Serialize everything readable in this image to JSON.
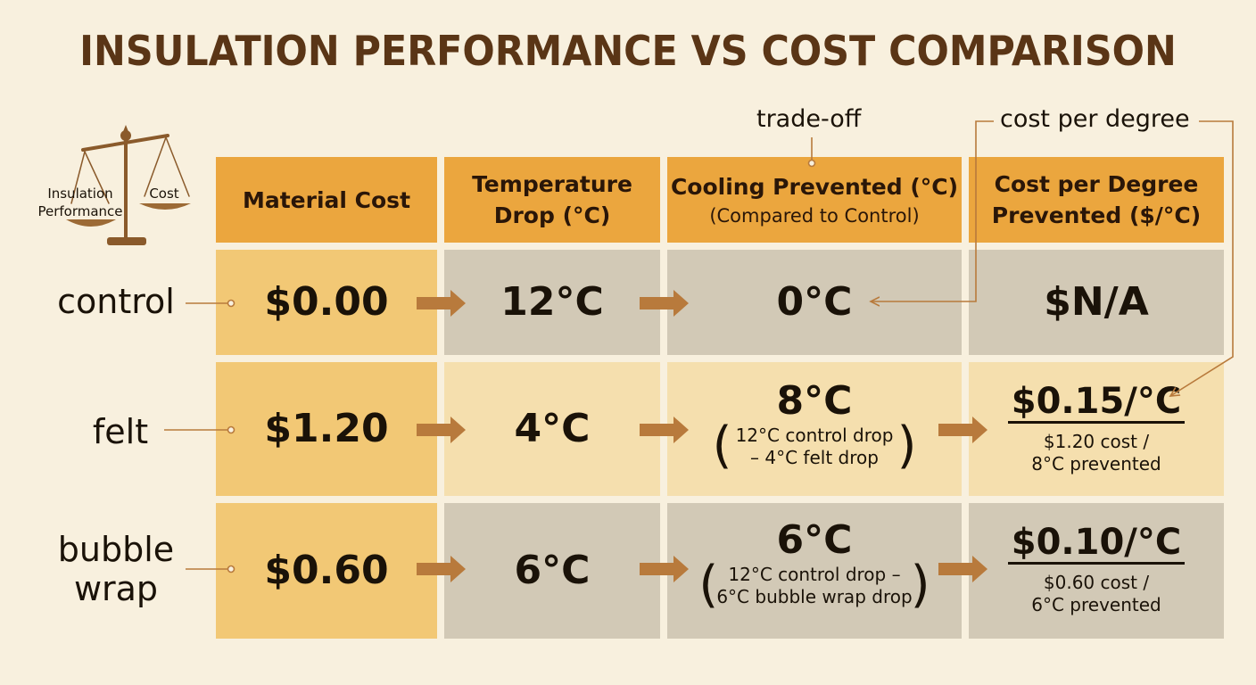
{
  "title": "INSULATION PERFORMANCE VS COST COMPARISON",
  "annotations": {
    "trade_off": "trade-off",
    "cost_per_degree": "cost per degree"
  },
  "scale_icon": {
    "left_label_1": "Insulation",
    "left_label_2": "Performance",
    "right_label": "Cost"
  },
  "headers": {
    "material_cost": "Material Cost",
    "temp_drop_1": "Temperature",
    "temp_drop_2": "Drop (°C)",
    "cooling_1": "Cooling Prevented (°C)",
    "cooling_2": "(Compared to Control)",
    "cost_per_1": "Cost per Degree",
    "cost_per_2": "Prevented ($/°C)"
  },
  "rows": [
    {
      "label": "control",
      "cost": "$0.00",
      "drop": "12°C",
      "prevented": "0°C",
      "cost_per_degree": "$N/A"
    },
    {
      "label": "felt",
      "cost": "$1.20",
      "drop": "4°C",
      "prevented": "8°C",
      "prevented_note_1": "12°C control drop",
      "prevented_note_2": "– 4°C felt drop",
      "cost_per_degree": "$0.15/°C",
      "cpd_note_1": "$1.20 cost /",
      "cpd_note_2": "8°C prevented"
    },
    {
      "label_1": "bubble",
      "label_2": "wrap",
      "cost": "$0.60",
      "drop": "6°C",
      "prevented": "6°C",
      "prevented_note_1": "12°C control drop –",
      "prevented_note_2": "6°C bubble wrap drop",
      "cost_per_degree": "$0.10/°C",
      "cpd_note_1": "$0.60 cost /",
      "cpd_note_2": "6°C prevented"
    }
  ],
  "colors": {
    "header": "#eba63e",
    "material_column": "#f2c875",
    "tan_cell": "#f5dfae",
    "grey_cell": "#d2c9b6",
    "arrow": "#b87a3c",
    "title": "#5a3516"
  }
}
